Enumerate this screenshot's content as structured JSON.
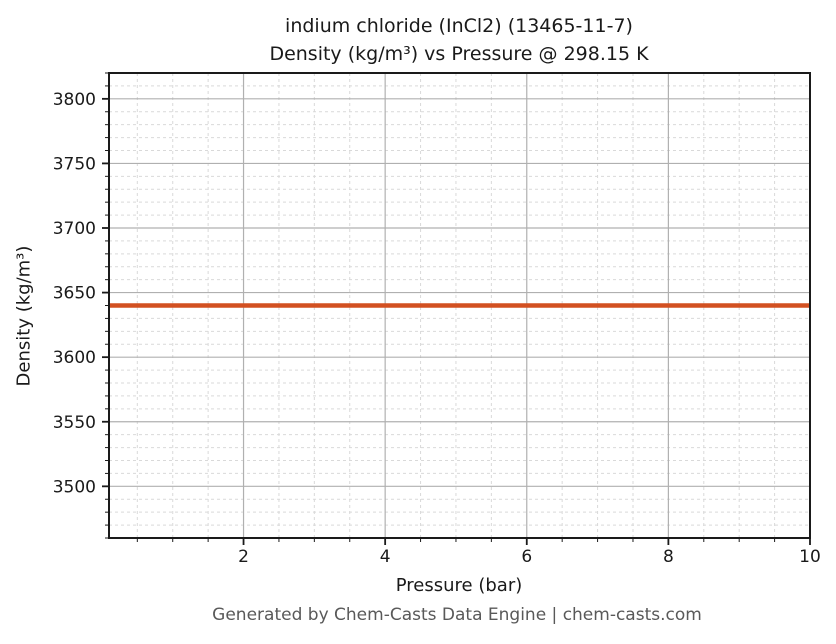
{
  "title": {
    "line1": "indium chloride (InCl2) (13465-11-7)",
    "line2": "Density (kg/m³) vs Pressure @ 298.15 K"
  },
  "footer": "Generated by Chem-Casts Data Engine | chem-casts.com",
  "colors": {
    "line": "#d25021",
    "grid_major": "#b0b0b0",
    "grid_minor": "#d9d9d9",
    "spine": "#1a1a1a",
    "text": "#1a1a1a",
    "footer_text": "#595959",
    "background": "#ffffff"
  },
  "chart_data": {
    "type": "line",
    "title": "indium chloride (InCl2) (13465-11-7) Density (kg/m³) vs Pressure @ 298.15 K",
    "xlabel": "Pressure (bar)",
    "ylabel": "Density (kg/m³)",
    "xlim": [
      0.1,
      10
    ],
    "ylim": [
      3460,
      3820
    ],
    "x_major_ticks": [
      2,
      4,
      6,
      8,
      10
    ],
    "x_minor_step": 0.5,
    "y_major_ticks": [
      3500,
      3550,
      3600,
      3650,
      3700,
      3750,
      3800
    ],
    "y_minor_step": 10,
    "grid": {
      "major": "solid",
      "minor": "dashed",
      "visible": true
    },
    "legend": "none",
    "series": [
      {
        "name": "Density",
        "x": [
          0.1,
          10
        ],
        "y": [
          3640,
          3640
        ],
        "note": "constant density of 3640 kg/m³ from 0.1 to 10 bar at 298.15 K"
      }
    ]
  }
}
